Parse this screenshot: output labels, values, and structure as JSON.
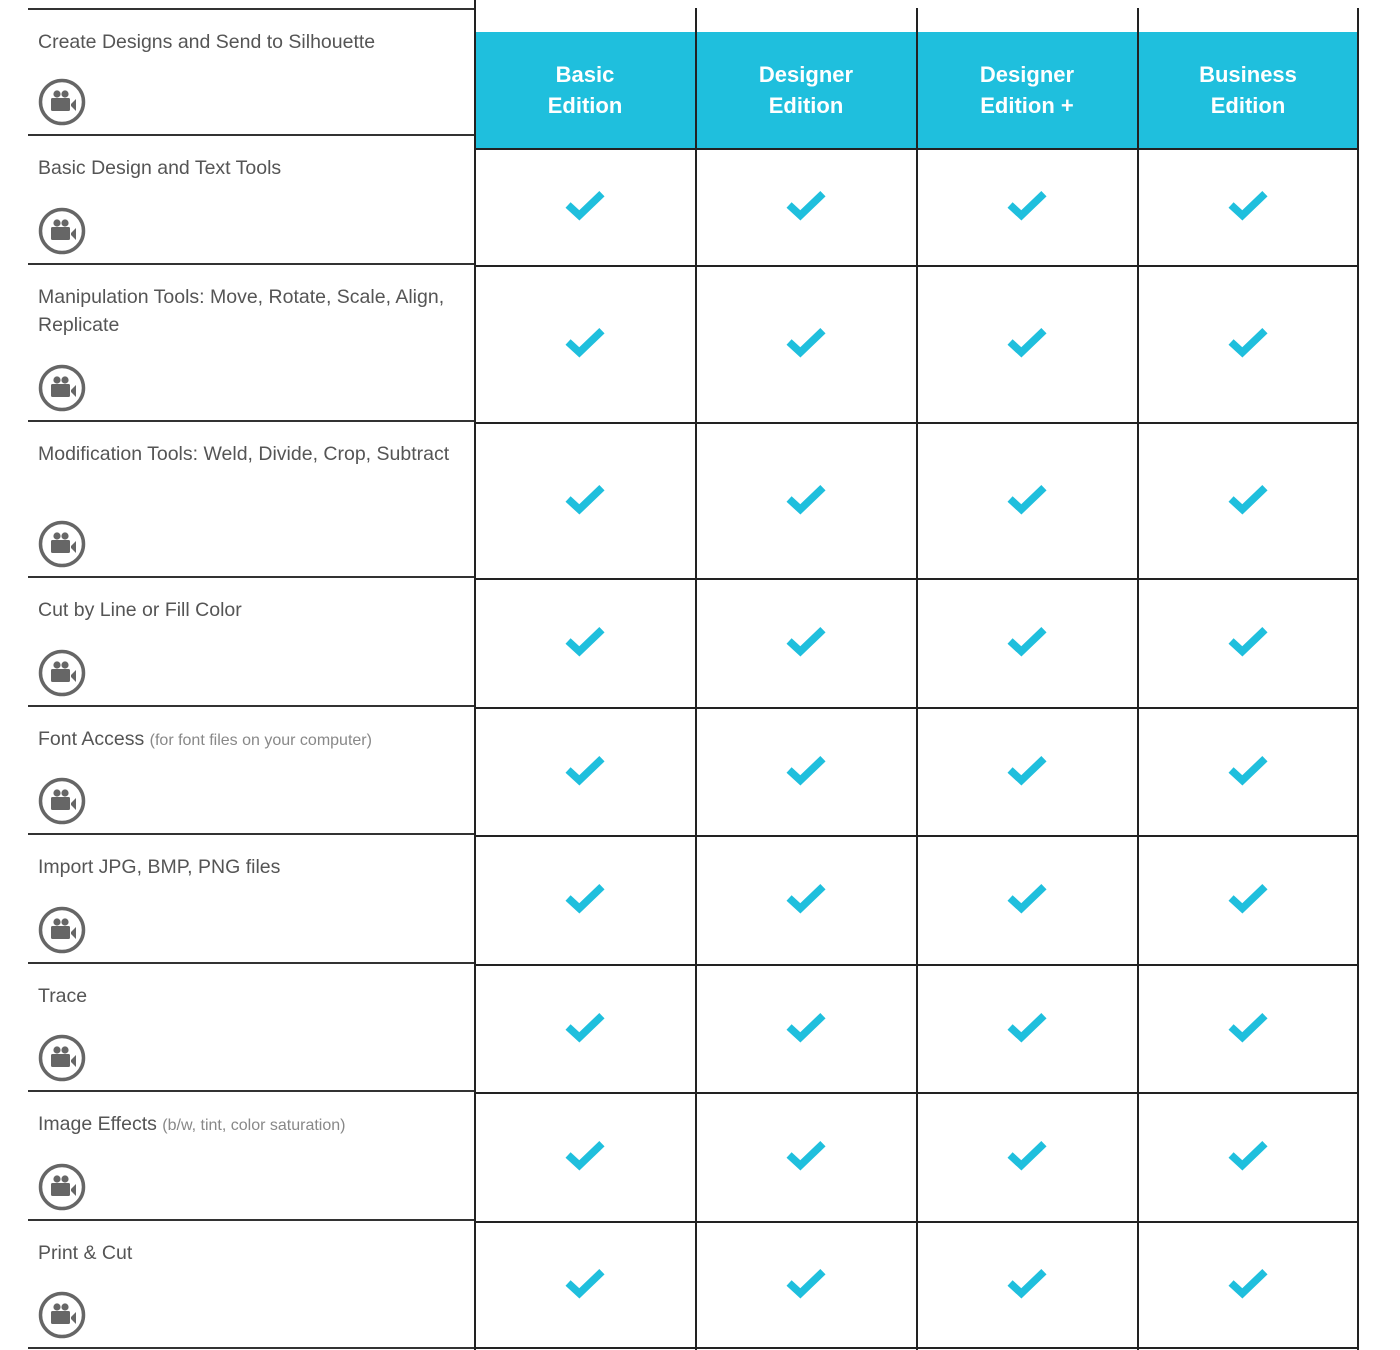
{
  "accent_color": "#1fbfdd",
  "editions": [
    "Basic\nEdition",
    "Designer\nEdition",
    "Designer\nEdition +",
    "Business\nEdition"
  ],
  "features": [
    {
      "label": "Create Designs and Send to Silhouette",
      "note": "",
      "icon": "video-camera-icon"
    },
    {
      "label": "Basic Design and Text Tools",
      "note": "",
      "icon": "video-camera-icon",
      "checks": [
        true,
        true,
        true,
        true
      ]
    },
    {
      "label": "Manipulation Tools: Move, Rotate, Scale, Align, Replicate",
      "note": "",
      "icon": "video-camera-icon",
      "checks": [
        true,
        true,
        true,
        true
      ]
    },
    {
      "label": "Modification Tools: Weld, Divide, Crop, Subtract",
      "note": "",
      "icon": "video-camera-icon",
      "checks": [
        true,
        true,
        true,
        true
      ]
    },
    {
      "label": "Cut by Line or Fill Color",
      "note": "",
      "icon": "video-camera-icon",
      "checks": [
        true,
        true,
        true,
        true
      ]
    },
    {
      "label": "Font Access",
      "note": "(for font files on your computer)",
      "icon": "video-camera-icon",
      "checks": [
        true,
        true,
        true,
        true
      ]
    },
    {
      "label": "Import JPG, BMP, PNG files",
      "note": "",
      "icon": "video-camera-icon",
      "checks": [
        true,
        true,
        true,
        true
      ]
    },
    {
      "label": "Trace",
      "note": "",
      "icon": "video-camera-icon",
      "checks": [
        true,
        true,
        true,
        true
      ]
    },
    {
      "label": "Image Effects",
      "note": "(b/w, tint, color saturation)",
      "icon": "video-camera-icon",
      "checks": [
        true,
        true,
        true,
        true
      ]
    },
    {
      "label": "Print & Cut",
      "note": "",
      "icon": "video-camera-icon",
      "checks": [
        true,
        true,
        true,
        true
      ]
    }
  ]
}
